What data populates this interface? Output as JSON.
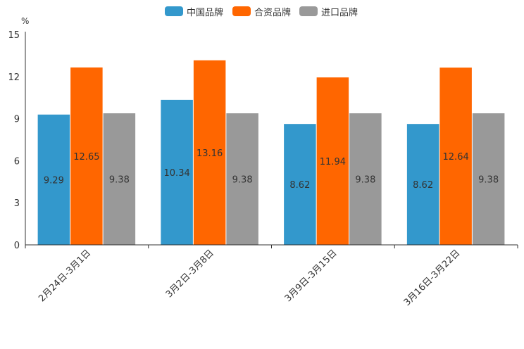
{
  "chart_data": {
    "type": "bar",
    "unit_label": "%",
    "categories": [
      "2月24日-3月1日",
      "3月2日-3月8日",
      "3月9日-3月15日",
      "3月16日-3月22日"
    ],
    "series": [
      {
        "name": "中国品牌",
        "color": "#3398cc",
        "values": [
          9.29,
          10.34,
          8.62,
          8.62
        ],
        "labels": [
          "9.29",
          "10.34",
          "8.62",
          "8.62"
        ]
      },
      {
        "name": "合资品牌",
        "color": "#ff6600",
        "values": [
          12.65,
          13.16,
          11.94,
          12.64
        ],
        "labels": [
          "12.65",
          "13.16",
          "11.94",
          "12.64"
        ]
      },
      {
        "name": "进口品牌",
        "color": "#999999",
        "values": [
          9.38,
          9.38,
          9.38,
          9.38
        ],
        "labels": [
          "9.38",
          "9.38",
          "9.38",
          "9.38"
        ]
      }
    ],
    "ylim": [
      0,
      15
    ],
    "yticks": [
      "0",
      "3",
      "6",
      "9",
      "12",
      "15"
    ],
    "legend_position": "top-center",
    "grid": false
  }
}
